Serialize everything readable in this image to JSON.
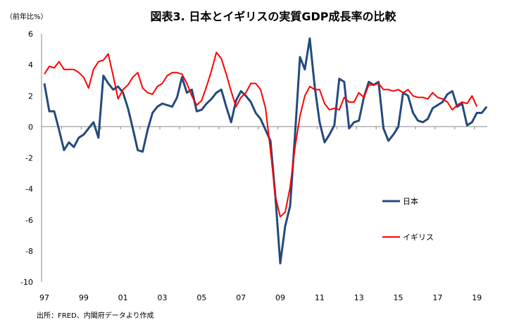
{
  "chart_data": {
    "type": "line",
    "title": "図表3. 日本とイギリスの実質GDP成長率の比較",
    "ylabel": "（前年比%）",
    "xlabel": "",
    "source": "出所：FRED、内閣府データより作成",
    "ylim": [
      -10,
      6
    ],
    "yticks": [
      "6",
      "4",
      "2",
      "0",
      "-2",
      "-4",
      "-6",
      "-8",
      "-10"
    ],
    "ytick_values": [
      6,
      4,
      2,
      0,
      -2,
      -4,
      -6,
      -8,
      -10
    ],
    "xticks": [
      "97",
      "99",
      "01",
      "03",
      "05",
      "07",
      "09",
      "11",
      "13",
      "15",
      "17",
      "19"
    ],
    "xtick_years": [
      1997,
      1999,
      2001,
      2003,
      2005,
      2007,
      2009,
      2011,
      2013,
      2015,
      2017,
      2019
    ],
    "x_start": "1997Q1",
    "frequency": "quarterly",
    "grid": false,
    "legend_position": "right",
    "series": [
      {
        "name": "日本",
        "color": "#244A7C",
        "values": [
          2.8,
          1.0,
          1.0,
          -0.2,
          -1.5,
          -1.0,
          -1.3,
          -0.7,
          -0.5,
          -0.1,
          0.3,
          -0.7,
          3.3,
          2.8,
          2.4,
          2.6,
          2.2,
          1.2,
          -0.1,
          -1.5,
          -1.6,
          -0.2,
          0.9,
          1.3,
          1.5,
          1.4,
          1.3,
          1.9,
          3.2,
          2.2,
          2.4,
          1.0,
          1.1,
          1.5,
          1.8,
          2.2,
          2.4,
          1.3,
          0.3,
          1.7,
          2.3,
          2.0,
          1.6,
          0.9,
          0.5,
          -0.2,
          -0.9,
          -4.5,
          -8.8,
          -6.4,
          -5.1,
          -0.5,
          4.5,
          3.7,
          5.7,
          2.6,
          0.3,
          -1.0,
          -0.5,
          0.1,
          3.1,
          2.9,
          -0.1,
          0.3,
          0.4,
          1.9,
          2.9,
          2.7,
          2.9,
          -0.1,
          -0.9,
          -0.5,
          0.0,
          2.2,
          2.0,
          0.9,
          0.4,
          0.3,
          0.5,
          1.2,
          1.4,
          1.6,
          2.1,
          2.3,
          1.3,
          1.5,
          0.1,
          0.3,
          0.9,
          0.9,
          1.3
        ]
      },
      {
        "name": "イギリス",
        "color": "#FF0000",
        "values": [
          3.4,
          3.9,
          3.8,
          4.2,
          3.7,
          3.7,
          3.7,
          3.5,
          3.2,
          2.5,
          3.7,
          4.2,
          4.3,
          4.7,
          3.3,
          1.8,
          2.4,
          2.7,
          3.2,
          3.5,
          2.5,
          2.2,
          2.1,
          2.6,
          2.8,
          3.3,
          3.5,
          3.5,
          3.4,
          2.8,
          2.0,
          1.4,
          1.7,
          2.6,
          3.6,
          4.8,
          4.4,
          3.4,
          2.3,
          1.3,
          1.9,
          2.2,
          2.8,
          2.8,
          2.4,
          1.2,
          -1.5,
          -4.5,
          -5.8,
          -5.5,
          -3.9,
          -1.3,
          0.7,
          2.0,
          2.6,
          2.4,
          2.4,
          1.5,
          1.1,
          1.2,
          1.1,
          1.9,
          1.6,
          1.6,
          2.2,
          1.9,
          2.7,
          2.7,
          2.8,
          2.4,
          2.4,
          2.3,
          2.4,
          2.2,
          2.4,
          2.0,
          1.9,
          1.9,
          1.8,
          2.2,
          1.9,
          1.8,
          1.6,
          1.1,
          1.4,
          1.6,
          1.5,
          2.0,
          1.3
        ]
      }
    ]
  }
}
